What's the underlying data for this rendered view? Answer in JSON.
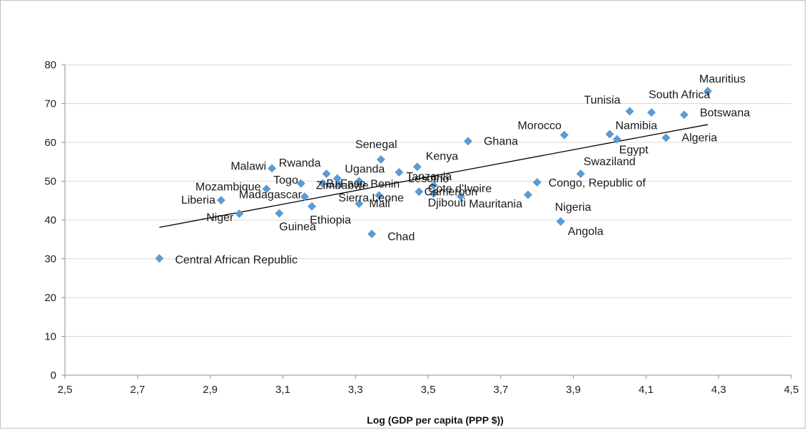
{
  "chart_data": {
    "type": "scatter",
    "title": "",
    "xlabel": "Log (GDP per capita (PPP $))",
    "ylabel": "",
    "xlim": [
      2.5,
      4.5
    ],
    "ylim": [
      0,
      80
    ],
    "xticks": [
      "2,5",
      "2,7",
      "2,9",
      "3,1",
      "3,3",
      "3,5",
      "3,7",
      "3,9",
      "4,1",
      "4,3",
      "4,5"
    ],
    "yticks": [
      "0",
      "10",
      "20",
      "30",
      "40",
      "50",
      "60",
      "70",
      "80"
    ],
    "grid": "horizontal",
    "marker_color": "#5B9BD5",
    "trendline": {
      "x": [
        2.76,
        4.27
      ],
      "y": [
        38.1,
        64.6
      ],
      "color": "#000000"
    },
    "points": [
      {
        "label": "Central African Republic",
        "x": 2.76,
        "y": 30.1
      },
      {
        "label": "Liberia",
        "x": 2.93,
        "y": 45.1
      },
      {
        "label": "Niger",
        "x": 2.98,
        "y": 41.6
      },
      {
        "label": "Mozambique",
        "x": 3.055,
        "y": 48.0
      },
      {
        "label": "Malawi",
        "x": 3.07,
        "y": 53.3
      },
      {
        "label": "Guinea",
        "x": 3.09,
        "y": 41.7
      },
      {
        "label": "Togo",
        "x": 3.15,
        "y": 49.4
      },
      {
        "label": "Madagascar",
        "x": 3.16,
        "y": 46.0
      },
      {
        "label": "Ethiopia",
        "x": 3.18,
        "y": 43.5
      },
      {
        "label": "B. Faso",
        "x": 3.21,
        "y": 49.4
      },
      {
        "label": "Rwanda",
        "x": 3.22,
        "y": 51.9
      },
      {
        "label": "Zimbabwe",
        "x": 3.25,
        "y": 50.7
      },
      {
        "label": "Sierra Leone",
        "x": 3.255,
        "y": 49.2
      },
      {
        "label": "Uganda",
        "x": 3.31,
        "y": 50.0
      },
      {
        "label": "Mali",
        "x": 3.31,
        "y": 44.2
      },
      {
        "label": "Chad",
        "x": 3.345,
        "y": 36.4
      },
      {
        "label": "Benin",
        "x": 3.365,
        "y": 46.3
      },
      {
        "label": "Senegal",
        "x": 3.37,
        "y": 55.6
      },
      {
        "label": "Tanzania",
        "x": 3.42,
        "y": 52.3
      },
      {
        "label": "Kenya",
        "x": 3.47,
        "y": 53.7
      },
      {
        "label": "Lesotho",
        "x": 3.475,
        "y": 47.3
      },
      {
        "label": "Djibouti",
        "x": 3.515,
        "y": 46.8
      },
      {
        "label": "Cameroon",
        "x": 3.515,
        "y": 48.9
      },
      {
        "label": "Cote d'Ivoire",
        "x": 3.59,
        "y": 46.1
      },
      {
        "label": "Ghana",
        "x": 3.61,
        "y": 60.3
      },
      {
        "label": "Mauritania",
        "x": 3.775,
        "y": 46.5
      },
      {
        "label": "Congo, Republic of",
        "x": 3.8,
        "y": 49.7
      },
      {
        "label": "Nigeria",
        "x": 3.865,
        "y": 39.6
      },
      {
        "label": "Angola",
        "x": 3.865,
        "y": 39.6
      },
      {
        "label": "Morocco",
        "x": 3.875,
        "y": 61.9
      },
      {
        "label": "Swaziland",
        "x": 3.92,
        "y": 51.9
      },
      {
        "label": "Namibia",
        "x": 4.0,
        "y": 62.1
      },
      {
        "label": "Egypt",
        "x": 4.02,
        "y": 60.8
      },
      {
        "label": "Tunisia",
        "x": 4.055,
        "y": 68.0
      },
      {
        "label": "South Africa",
        "x": 4.115,
        "y": 67.7
      },
      {
        "label": "Algeria",
        "x": 4.155,
        "y": 61.2
      },
      {
        "label": "Botswana",
        "x": 4.205,
        "y": 67.1
      },
      {
        "label": "Mauritius",
        "x": 4.27,
        "y": 73.2
      }
    ]
  }
}
